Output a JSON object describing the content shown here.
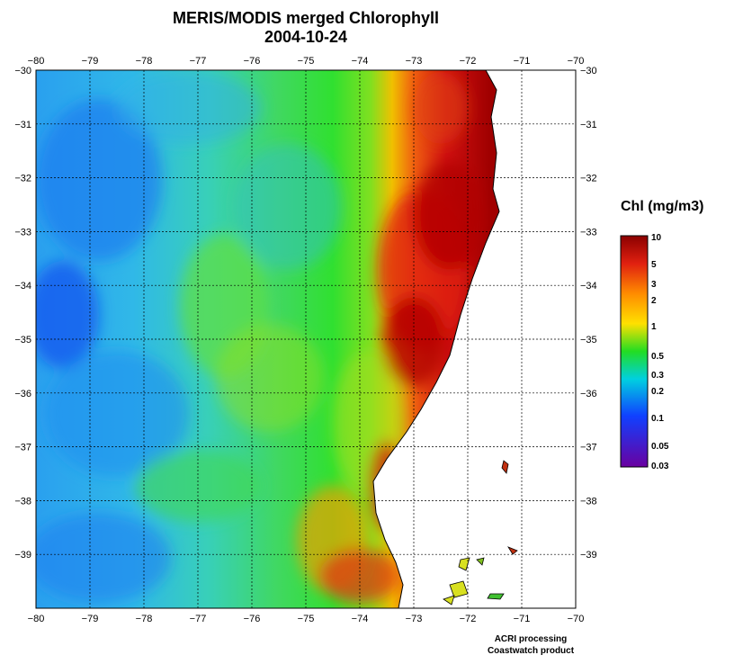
{
  "title": "MERIS/MODIS merged Chlorophyll",
  "date": "2004-10-24",
  "longitude_ticks": [
    "−80",
    "−79",
    "−78",
    "−77",
    "−76",
    "−75",
    "−74",
    "−73",
    "−72",
    "−71",
    "−70"
  ],
  "latitude_ticks": [
    "−30",
    "−31",
    "−32",
    "−33",
    "−34",
    "−35",
    "−36",
    "−37",
    "−38",
    "−39"
  ],
  "colorbar": {
    "title": "Chl (mg/m3)",
    "labels": [
      "10",
      "5",
      "3",
      "2",
      "1",
      "0.5",
      "0.3",
      "0.2",
      "0.1",
      "0.05",
      "0.03"
    ],
    "colors": {
      "high": "#8b0000",
      "red": "#e02010",
      "orange": "#ff8c00",
      "yellow": "#ffe000",
      "green": "#22dd22",
      "cyan": "#00d0e0",
      "blue": "#1040ff",
      "low": "#6a00a0"
    }
  },
  "credits": {
    "line1": "ACRI processing",
    "line2": "Coastwatch product"
  }
}
